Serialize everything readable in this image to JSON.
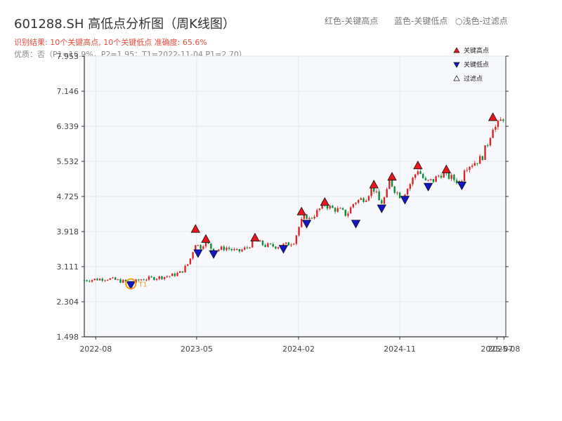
{
  "title": "601288.SH 高低点分析图（周K线图）",
  "summary": "识别结果: 10个关键高点, 10个关键低点  准确度: 65.6%",
  "quality": "优质：否（P1=16.9%，P2=1.95；T1=2022-11-04 P1=2.70）",
  "header_legend": {
    "red": "红色-关键高点",
    "blue": "蓝色-关键低点",
    "hollow": "○浅色-过滤点"
  },
  "colors": {
    "up": "#d62728",
    "down": "#0b8a3a",
    "high_marker": "#e8171c",
    "low_marker": "#1414c8",
    "t1_circle": "#f39c12",
    "plot_bg": "#f6f8fb"
  },
  "chart_data": {
    "type": "candlestick",
    "title": "601288.SH 高低点分析图（周K线图）",
    "x_range": [
      "2022-07-01",
      "2025-08-15"
    ],
    "y_range": [
      1.498,
      7.953
    ],
    "x_ticks": [
      "2022-08",
      "2023-05",
      "2024-02",
      "2024-11",
      "2025-07",
      "2025-08"
    ],
    "y_ticks": [
      1.498,
      2.304,
      3.111,
      3.918,
      4.725,
      5.532,
      6.339,
      7.146,
      7.953
    ],
    "legend": {
      "placement": "top-right",
      "entries": [
        "关键高点",
        "关键低点",
        "过滤点"
      ]
    },
    "price_path": [
      [
        "2022-07-01",
        2.8
      ],
      [
        "2022-09-01",
        2.84
      ],
      [
        "2022-10-21",
        2.76
      ],
      [
        "2022-11-04",
        2.72
      ],
      [
        "2022-12-01",
        2.82
      ],
      [
        "2023-01-15",
        2.86
      ],
      [
        "2023-02-20",
        2.9
      ],
      [
        "2023-03-20",
        2.98
      ],
      [
        "2023-04-10",
        3.2
      ],
      [
        "2023-04-28",
        3.65
      ],
      [
        "2023-05-10",
        3.55
      ],
      [
        "2023-05-25",
        3.7
      ],
      [
        "2023-06-15",
        3.48
      ],
      [
        "2023-07-20",
        3.55
      ],
      [
        "2023-08-20",
        3.45
      ],
      [
        "2023-09-15",
        3.55
      ],
      [
        "2023-10-05",
        3.72
      ],
      [
        "2023-11-01",
        3.6
      ],
      [
        "2023-12-01",
        3.58
      ],
      [
        "2024-01-01",
        3.62
      ],
      [
        "2024-01-20",
        3.7
      ],
      [
        "2024-02-05",
        4.1
      ],
      [
        "2024-02-20",
        4.3
      ],
      [
        "2024-03-01",
        4.2
      ],
      [
        "2024-03-20",
        4.35
      ],
      [
        "2024-04-10",
        4.55
      ],
      [
        "2024-05-01",
        4.45
      ],
      [
        "2024-05-25",
        4.4
      ],
      [
        "2024-06-10",
        4.3
      ],
      [
        "2024-07-01",
        4.6
      ],
      [
        "2024-08-01",
        4.7
      ],
      [
        "2024-08-20",
        4.95
      ],
      [
        "2024-09-10",
        4.55
      ],
      [
        "2024-09-25",
        4.75
      ],
      [
        "2024-10-05",
        5.1
      ],
      [
        "2024-10-20",
        4.85
      ],
      [
        "2024-11-05",
        4.72
      ],
      [
        "2024-11-25",
        4.95
      ],
      [
        "2024-12-20",
        5.35
      ],
      [
        "2025-01-10",
        5.05
      ],
      [
        "2025-02-01",
        5.1
      ],
      [
        "2025-02-20",
        5.25
      ],
      [
        "2025-03-10",
        5.2
      ],
      [
        "2025-04-01",
        5.1
      ],
      [
        "2025-04-15",
        5.05
      ],
      [
        "2025-04-25",
        5.4
      ],
      [
        "2025-05-20",
        5.5
      ],
      [
        "2025-06-10",
        5.6
      ],
      [
        "2025-06-25",
        5.9
      ],
      [
        "2025-07-11",
        6.35
      ],
      [
        "2025-07-20",
        6.3
      ],
      [
        "2025-08-08",
        6.55
      ]
    ],
    "key_highs": [
      [
        "2023-04-28",
        3.98
      ],
      [
        "2023-05-26",
        3.75
      ],
      [
        "2023-10-06",
        3.78
      ],
      [
        "2024-02-09",
        4.38
      ],
      [
        "2024-04-12",
        4.6
      ],
      [
        "2024-08-23",
        5.0
      ],
      [
        "2024-10-11",
        5.18
      ],
      [
        "2024-12-20",
        5.44
      ],
      [
        "2025-03-07",
        5.35
      ],
      [
        "2025-07-11",
        6.55
      ]
    ],
    "key_lows": [
      [
        "2022-11-04",
        2.69
      ],
      [
        "2023-05-05",
        3.42
      ],
      [
        "2023-06-16",
        3.4
      ],
      [
        "2023-12-22",
        3.52
      ],
      [
        "2024-02-23",
        4.1
      ],
      [
        "2024-07-05",
        4.1
      ],
      [
        "2024-09-13",
        4.45
      ],
      [
        "2024-11-15",
        4.65
      ],
      [
        "2025-01-17",
        4.95
      ],
      [
        "2025-04-18",
        4.98
      ]
    ],
    "t1": {
      "date": "2022-11-04",
      "price": 2.7,
      "label": "T1"
    }
  }
}
